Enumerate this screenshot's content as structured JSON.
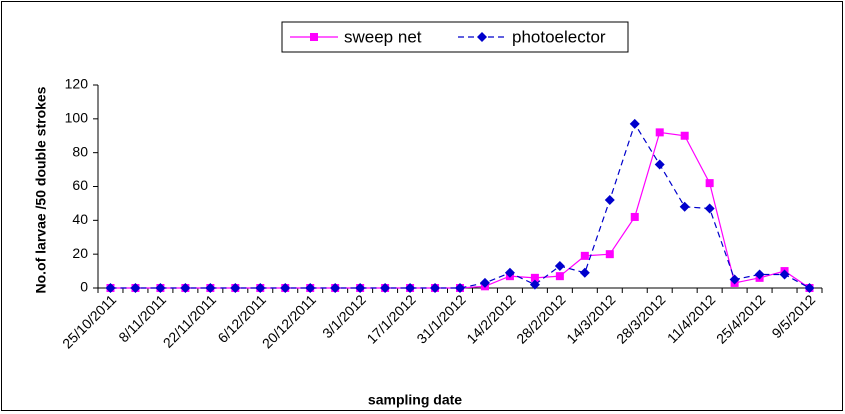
{
  "chart_data": {
    "type": "line",
    "y_label": "No.of larvae /50 double strokes",
    "x_label": "sampling date",
    "categories": [
      "25/10/2011",
      null,
      "8/11/2011",
      null,
      "22/11/2011",
      null,
      "6/12/2011",
      null,
      "20/12/2011",
      null,
      "3/1/2012",
      null,
      "17/1/2012",
      null,
      "31/1/2012",
      null,
      "14/2/2012",
      null,
      "28/2/2012",
      null,
      "14/3/2012",
      null,
      "28/3/2012",
      null,
      "11/4/2012",
      null,
      "25/4/2012",
      null,
      "9/5/2012"
    ],
    "series": [
      {
        "name": "sweep net",
        "color": "#ff00ff",
        "marker": "square",
        "dash": false,
        "values": [
          0,
          0,
          0,
          0,
          0,
          0,
          0,
          0,
          0,
          0,
          0,
          0,
          0,
          0,
          0,
          1,
          7,
          6,
          7,
          19,
          20,
          42,
          92,
          90,
          62,
          3,
          6,
          10,
          0
        ]
      },
      {
        "name": "photoelector",
        "color": "#0000cc",
        "marker": "diamond",
        "dash": true,
        "values": [
          0,
          0,
          0,
          0,
          0,
          0,
          0,
          0,
          0,
          0,
          0,
          0,
          0,
          0,
          0,
          3,
          9,
          2,
          13,
          9,
          52,
          97,
          73,
          48,
          47,
          5,
          8,
          8,
          0
        ]
      }
    ],
    "ylim": [
      0,
      120
    ],
    "yticks": [
      0,
      20,
      40,
      60,
      80,
      100,
      120
    ],
    "grid": false
  }
}
